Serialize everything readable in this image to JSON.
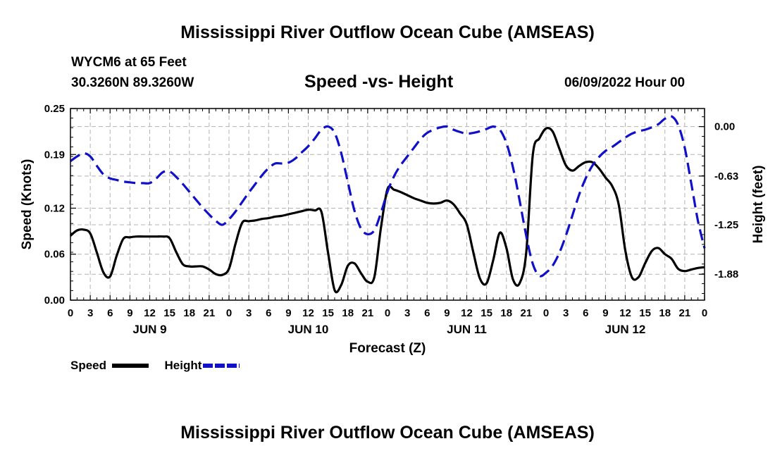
{
  "title": "Mississippi River Outflow Ocean Cube (AMSEAS)",
  "title_repeat": "Mississippi River Outflow Ocean Cube (AMSEAS)",
  "station": "WYCM6 at 65 Feet",
  "location": "30.3260N  89.3260W",
  "subtitle": "Speed -vs- Height",
  "datetime": "06/09/2022 Hour 00",
  "legend": {
    "speed_label": "Speed",
    "height_label": "Height",
    "speed_color": "#000000",
    "height_color": "#1010c8"
  },
  "chart_data": {
    "type": "line",
    "title": "Speed -vs- Height",
    "xlabel": "Forecast (Z)",
    "ylabel_left": "Speed (Knots)",
    "ylabel_right": "Height (feet)",
    "x_unit": "hours since 06/09/2022 00Z",
    "xlim": [
      0,
      96
    ],
    "ylim_left": [
      0,
      0.25
    ],
    "ylim_right": [
      -2.21,
      0.23
    ],
    "yticks_left": [
      0.0,
      0.06,
      0.12,
      0.19,
      0.25
    ],
    "ytick_labels_left": [
      "0.00",
      "0.06",
      "0.12",
      "0.19",
      "0.25"
    ],
    "yticks_right": [
      0.0,
      -0.63,
      -1.25,
      -1.88
    ],
    "ytick_labels_right": [
      "0.00",
      "-0.63",
      "-1.25",
      "-1.88"
    ],
    "xtick_labels": [
      "0",
      "3",
      "6",
      "9",
      "12",
      "15",
      "18",
      "21",
      "0",
      "3",
      "6",
      "9",
      "12",
      "15",
      "18",
      "21",
      "0",
      "3",
      "6",
      "9",
      "12",
      "15",
      "18",
      "21",
      "0",
      "3",
      "6",
      "9",
      "12",
      "15",
      "18",
      "21",
      "0"
    ],
    "day_labels": [
      {
        "label": "JUN 9",
        "hour": 12
      },
      {
        "label": "JUN 10",
        "hour": 36
      },
      {
        "label": "JUN 11",
        "hour": 60
      },
      {
        "label": "JUN 12",
        "hour": 84
      }
    ],
    "grid": true,
    "series": [
      {
        "name": "Speed",
        "axis": "left",
        "color": "#000000",
        "style": "solid",
        "x": [
          0,
          1,
          2,
          3,
          4,
          5,
          6,
          7,
          8,
          9,
          10,
          11,
          12,
          13,
          14,
          15,
          16,
          17,
          18,
          19,
          20,
          21,
          22,
          23,
          24,
          25,
          26,
          27,
          28,
          29,
          30,
          31,
          32,
          33,
          34,
          35,
          36,
          37,
          38,
          39,
          40,
          41,
          42,
          43,
          44,
          45,
          46,
          47,
          48,
          49,
          50,
          51,
          52,
          53,
          54,
          55,
          56,
          57,
          58,
          59,
          60,
          61,
          62,
          63,
          64,
          65,
          66,
          67,
          68,
          69,
          70,
          71,
          72,
          73,
          74,
          75,
          76,
          77,
          78,
          79,
          80,
          81,
          82,
          83,
          84,
          85,
          86,
          87,
          88,
          89,
          90,
          91,
          92,
          93,
          94,
          95,
          96
        ],
        "values": [
          0.084,
          0.091,
          0.092,
          0.087,
          0.062,
          0.036,
          0.031,
          0.058,
          0.08,
          0.082,
          0.083,
          0.083,
          0.083,
          0.083,
          0.083,
          0.081,
          0.063,
          0.047,
          0.044,
          0.044,
          0.044,
          0.04,
          0.034,
          0.033,
          0.041,
          0.074,
          0.101,
          0.103,
          0.104,
          0.106,
          0.107,
          0.109,
          0.11,
          0.112,
          0.114,
          0.116,
          0.118,
          0.117,
          0.115,
          0.062,
          0.013,
          0.02,
          0.045,
          0.048,
          0.035,
          0.024,
          0.03,
          0.094,
          0.145,
          0.144,
          0.141,
          0.137,
          0.133,
          0.13,
          0.127,
          0.126,
          0.127,
          0.13,
          0.125,
          0.113,
          0.099,
          0.062,
          0.028,
          0.022,
          0.052,
          0.088,
          0.068,
          0.027,
          0.022,
          0.062,
          0.19,
          0.211,
          0.224,
          0.22,
          0.198,
          0.176,
          0.169,
          0.175,
          0.18,
          0.18,
          0.172,
          0.16,
          0.149,
          0.125,
          0.065,
          0.03,
          0.03,
          0.048,
          0.064,
          0.068,
          0.06,
          0.054,
          0.041,
          0.038,
          0.04,
          0.042,
          0.043
        ]
      },
      {
        "name": "Height",
        "axis": "right",
        "color": "#1010c8",
        "style": "dashed",
        "x": [
          0,
          1,
          2,
          3,
          4,
          5,
          6,
          7,
          8,
          9,
          10,
          11,
          12,
          13,
          14,
          15,
          16,
          17,
          18,
          19,
          20,
          21,
          22,
          23,
          24,
          25,
          26,
          27,
          28,
          29,
          30,
          31,
          32,
          33,
          34,
          35,
          36,
          37,
          38,
          39,
          40,
          41,
          42,
          43,
          44,
          45,
          46,
          47,
          48,
          49,
          50,
          51,
          52,
          53,
          54,
          55,
          56,
          57,
          58,
          59,
          60,
          61,
          62,
          63,
          64,
          65,
          66,
          67,
          68,
          69,
          70,
          71,
          72,
          73,
          74,
          75,
          76,
          77,
          78,
          79,
          80,
          81,
          82,
          83,
          84,
          85,
          86,
          87,
          88,
          89,
          90,
          91,
          92,
          93,
          94,
          95,
          96
        ],
        "values": [
          -0.44,
          -0.38,
          -0.34,
          -0.38,
          -0.5,
          -0.61,
          -0.66,
          -0.68,
          -0.7,
          -0.71,
          -0.72,
          -0.72,
          -0.72,
          -0.66,
          -0.58,
          -0.57,
          -0.64,
          -0.73,
          -0.83,
          -0.93,
          -1.03,
          -1.12,
          -1.2,
          -1.25,
          -1.18,
          -1.08,
          -0.96,
          -0.84,
          -0.73,
          -0.62,
          -0.53,
          -0.47,
          -0.47,
          -0.46,
          -0.41,
          -0.33,
          -0.25,
          -0.15,
          -0.04,
          0.0,
          -0.08,
          -0.34,
          -0.71,
          -1.07,
          -1.3,
          -1.37,
          -1.32,
          -1.1,
          -0.83,
          -0.63,
          -0.49,
          -0.38,
          -0.27,
          -0.16,
          -0.08,
          -0.04,
          -0.01,
          0.0,
          -0.04,
          -0.07,
          -0.09,
          -0.08,
          -0.06,
          -0.03,
          0.0,
          -0.04,
          -0.21,
          -0.52,
          -0.94,
          -1.39,
          -1.75,
          -1.9,
          -1.86,
          -1.77,
          -1.61,
          -1.39,
          -1.13,
          -0.87,
          -0.66,
          -0.5,
          -0.39,
          -0.31,
          -0.26,
          -0.2,
          -0.14,
          -0.09,
          -0.06,
          -0.04,
          -0.01,
          0.03,
          0.1,
          0.13,
          0.02,
          -0.27,
          -0.73,
          -1.2,
          -1.55
        ]
      }
    ]
  }
}
